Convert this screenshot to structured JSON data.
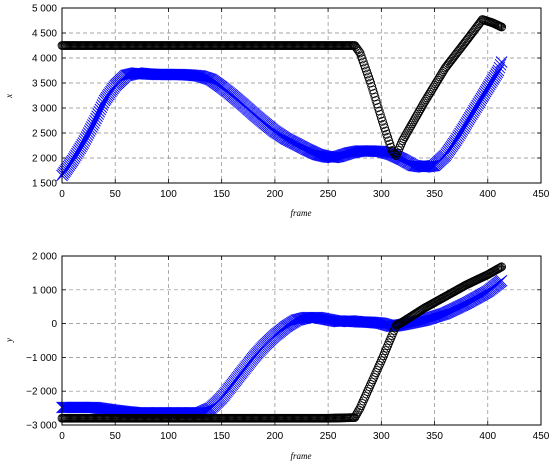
{
  "chart_data": [
    {
      "type": "scatter",
      "xlabel": "frame",
      "ylabel": "x",
      "xlim": [
        0,
        450
      ],
      "ylim": [
        1500,
        5000
      ],
      "x_ticks": [
        0,
        50,
        100,
        150,
        200,
        250,
        300,
        350,
        400,
        450
      ],
      "x_tick_labels": [
        "0",
        "50",
        "100",
        "150",
        "200",
        "250",
        "300",
        "350",
        "400",
        "450"
      ],
      "y_ticks": [
        1500,
        2000,
        2500,
        3000,
        3500,
        4000,
        4500,
        5000
      ],
      "y_tick_labels": [
        "1 500",
        "2 000",
        "2 500",
        "3 000",
        "3 500",
        "4 000",
        "4 500",
        "5 000"
      ],
      "grid": true,
      "series": [
        {
          "marker": "x",
          "color": "#0000ff",
          "points": [
            [
              0,
              1650
            ],
            [
              10,
              1950
            ],
            [
              20,
              2300
            ],
            [
              30,
              2700
            ],
            [
              40,
              3150
            ],
            [
              50,
              3450
            ],
            [
              60,
              3650
            ],
            [
              70,
              3700
            ],
            [
              80,
              3680
            ],
            [
              90,
              3670
            ],
            [
              100,
              3670
            ],
            [
              110,
              3670
            ],
            [
              120,
              3660
            ],
            [
              130,
              3640
            ],
            [
              140,
              3570
            ],
            [
              150,
              3420
            ],
            [
              160,
              3250
            ],
            [
              170,
              3070
            ],
            [
              180,
              2880
            ],
            [
              190,
              2700
            ],
            [
              200,
              2530
            ],
            [
              210,
              2390
            ],
            [
              220,
              2280
            ],
            [
              230,
              2170
            ],
            [
              240,
              2070
            ],
            [
              250,
              2020
            ],
            [
              255,
              2010
            ],
            [
              260,
              2030
            ],
            [
              270,
              2100
            ],
            [
              280,
              2140
            ],
            [
              290,
              2140
            ],
            [
              300,
              2130
            ],
            [
              310,
              2070
            ],
            [
              320,
              1970
            ],
            [
              330,
              1850
            ],
            [
              340,
              1820
            ],
            [
              350,
              1850
            ],
            [
              360,
              2050
            ],
            [
              370,
              2350
            ],
            [
              380,
              2700
            ],
            [
              390,
              3050
            ],
            [
              400,
              3400
            ],
            [
              410,
              3750
            ],
            [
              413,
              3920
            ]
          ]
        },
        {
          "marker": "o",
          "color": "#000000",
          "points": [
            [
              0,
              4250
            ],
            [
              50,
              4250
            ],
            [
              100,
              4250
            ],
            [
              150,
              4250
            ],
            [
              200,
              4250
            ],
            [
              250,
              4250
            ],
            [
              275,
              4250
            ],
            [
              280,
              4100
            ],
            [
              290,
              3500
            ],
            [
              300,
              2800
            ],
            [
              310,
              2150
            ],
            [
              314,
              2050
            ],
            [
              320,
              2350
            ],
            [
              340,
              3100
            ],
            [
              360,
              3800
            ],
            [
              380,
              4350
            ],
            [
              395,
              4770
            ],
            [
              405,
              4700
            ],
            [
              413,
              4620
            ]
          ]
        }
      ]
    },
    {
      "type": "scatter",
      "xlabel": "frame",
      "ylabel": "y",
      "xlim": [
        0,
        450
      ],
      "ylim": [
        -3000,
        2000
      ],
      "x_ticks": [
        0,
        50,
        100,
        150,
        200,
        250,
        300,
        350,
        400,
        450
      ],
      "x_tick_labels": [
        "0",
        "50",
        "100",
        "150",
        "200",
        "250",
        "300",
        "350",
        "400",
        "450"
      ],
      "y_ticks": [
        -3000,
        -2000,
        -1000,
        0,
        1000,
        2000
      ],
      "y_tick_labels": [
        "−3 000",
        "−2 000",
        "−1 000",
        "0",
        "1 000",
        "2 000"
      ],
      "grid": true,
      "series": [
        {
          "marker": "x",
          "color": "#0000ff",
          "points": [
            [
              0,
              -2480
            ],
            [
              30,
              -2480
            ],
            [
              50,
              -2570
            ],
            [
              70,
              -2640
            ],
            [
              100,
              -2640
            ],
            [
              130,
              -2640
            ],
            [
              140,
              -2500
            ],
            [
              150,
              -2200
            ],
            [
              160,
              -1800
            ],
            [
              170,
              -1400
            ],
            [
              180,
              -1000
            ],
            [
              190,
              -650
            ],
            [
              200,
              -350
            ],
            [
              210,
              -100
            ],
            [
              220,
              100
            ],
            [
              230,
              180
            ],
            [
              240,
              180
            ],
            [
              250,
              120
            ],
            [
              260,
              60
            ],
            [
              270,
              80
            ],
            [
              280,
              50
            ],
            [
              290,
              40
            ],
            [
              300,
              10
            ],
            [
              310,
              -80
            ],
            [
              320,
              -30
            ],
            [
              340,
              100
            ],
            [
              360,
              300
            ],
            [
              380,
              600
            ],
            [
              400,
              950
            ],
            [
              413,
              1270
            ]
          ]
        },
        {
          "marker": "o",
          "color": "#000000",
          "points": [
            [
              0,
              -2800
            ],
            [
              50,
              -2800
            ],
            [
              100,
              -2800
            ],
            [
              150,
              -2800
            ],
            [
              200,
              -2800
            ],
            [
              250,
              -2800
            ],
            [
              275,
              -2780
            ],
            [
              280,
              -2500
            ],
            [
              290,
              -1800
            ],
            [
              300,
              -1100
            ],
            [
              310,
              -350
            ],
            [
              314,
              -50
            ],
            [
              320,
              50
            ],
            [
              340,
              450
            ],
            [
              360,
              800
            ],
            [
              380,
              1150
            ],
            [
              400,
              1450
            ],
            [
              413,
              1680
            ]
          ]
        }
      ]
    }
  ]
}
